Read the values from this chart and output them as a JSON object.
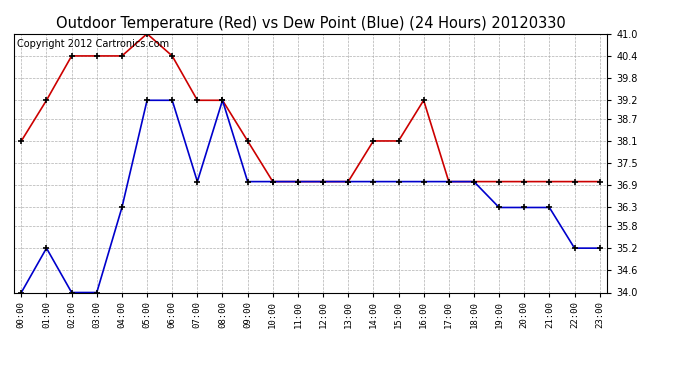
{
  "title": "Outdoor Temperature (Red) vs Dew Point (Blue) (24 Hours) 20120330",
  "copyright_text": "Copyright 2012 Cartronics.com",
  "hours": [
    0,
    1,
    2,
    3,
    4,
    5,
    6,
    7,
    8,
    9,
    10,
    11,
    12,
    13,
    14,
    15,
    16,
    17,
    18,
    19,
    20,
    21,
    22,
    23
  ],
  "hour_labels": [
    "00:00",
    "01:00",
    "02:00",
    "03:00",
    "04:00",
    "05:00",
    "06:00",
    "07:00",
    "08:00",
    "09:00",
    "10:00",
    "11:00",
    "12:00",
    "13:00",
    "14:00",
    "15:00",
    "16:00",
    "17:00",
    "18:00",
    "19:00",
    "20:00",
    "21:00",
    "22:00",
    "23:00"
  ],
  "temp_red": [
    38.1,
    39.2,
    40.4,
    40.4,
    40.4,
    41.0,
    40.4,
    39.2,
    39.2,
    38.1,
    37.0,
    37.0,
    37.0,
    37.0,
    38.1,
    38.1,
    39.2,
    37.0,
    37.0,
    37.0,
    37.0,
    37.0,
    37.0,
    37.0
  ],
  "dew_blue": [
    34.0,
    35.2,
    34.0,
    34.0,
    36.3,
    39.2,
    39.2,
    37.0,
    39.2,
    37.0,
    37.0,
    37.0,
    37.0,
    37.0,
    37.0,
    37.0,
    37.0,
    37.0,
    37.0,
    36.3,
    36.3,
    36.3,
    35.2,
    35.2
  ],
  "ylim_min": 34.0,
  "ylim_max": 41.0,
  "yticks": [
    34.0,
    34.6,
    35.2,
    35.8,
    36.3,
    36.9,
    37.5,
    38.1,
    38.7,
    39.2,
    39.8,
    40.4,
    41.0
  ],
  "bg_color": "#ffffff",
  "grid_color": "#b0b0b0",
  "red_color": "#cc0000",
  "blue_color": "#0000cc",
  "title_fontsize": 10.5,
  "copyright_fontsize": 7
}
